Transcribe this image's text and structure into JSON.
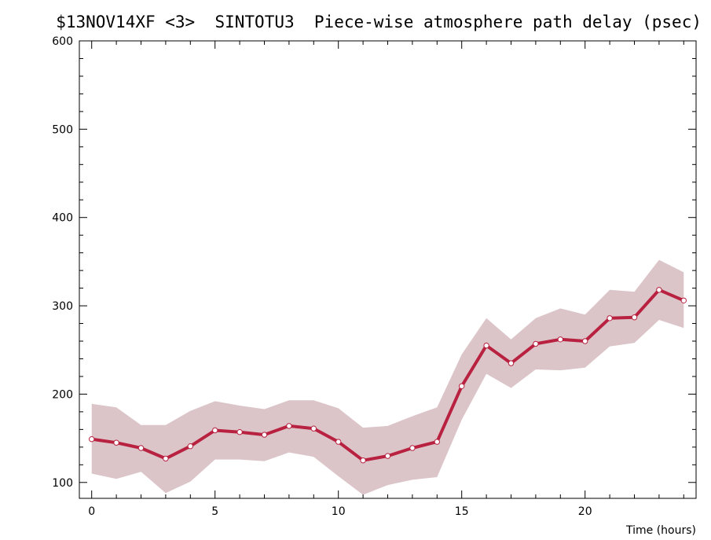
{
  "chart_data": {
    "type": "line",
    "title": "$13NOV14XF <3>  SINTOTU3  Piece-wise atmosphere path delay (psec)",
    "xlabel": "Time (hours)",
    "ylabel": "",
    "xlim": [
      -0.5,
      24.5
    ],
    "ylim": [
      82,
      600
    ],
    "x_major_ticks": [
      0,
      5,
      10,
      15,
      20
    ],
    "x_tick_labels": [
      "0",
      "5",
      "10",
      "15",
      "20"
    ],
    "y_major_ticks": [
      100,
      200,
      300,
      400,
      500,
      600
    ],
    "y_tick_labels": [
      "100",
      "200",
      "300",
      "400",
      "500",
      "600"
    ],
    "grid": false,
    "series": [
      {
        "x": [
          0,
          1,
          2,
          3,
          4,
          5,
          6,
          7,
          8,
          9,
          10,
          11,
          12,
          13,
          14,
          15,
          16,
          17,
          18,
          19,
          20,
          21,
          22,
          23,
          24
        ],
        "values": [
          149,
          145,
          139,
          127,
          141,
          159,
          157,
          154,
          164,
          161,
          146,
          125,
          130,
          139,
          146,
          209,
          255,
          235,
          257,
          262,
          260,
          286,
          287,
          318,
          306
        ],
        "upper": [
          189,
          185,
          165,
          165,
          181,
          192,
          187,
          183,
          193,
          193,
          184,
          162,
          164,
          175,
          185,
          245,
          286,
          262,
          286,
          297,
          290,
          318,
          316,
          352,
          338
        ],
        "lower": [
          110,
          104,
          112,
          88,
          101,
          126,
          126,
          124,
          134,
          129,
          107,
          86,
          97,
          103,
          106,
          171,
          223,
          207,
          228,
          227,
          230,
          254,
          258,
          284,
          275
        ]
      }
    ],
    "colors": {
      "line": "#b8213f",
      "band": "#dcc5c9",
      "marker_fill": "#ffffff",
      "axis": "#000000"
    }
  }
}
